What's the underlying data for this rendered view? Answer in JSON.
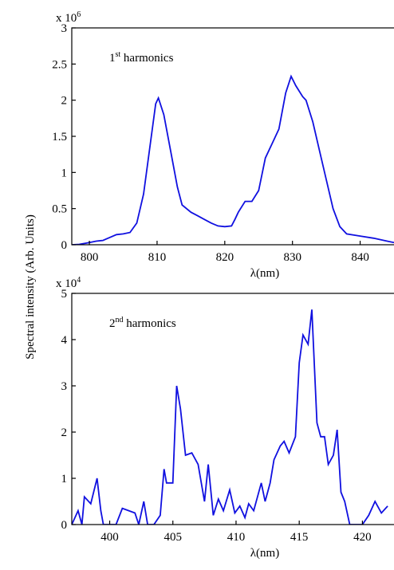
{
  "chart_data": [
    {
      "type": "line",
      "ylabel": "Spectral intensity (Arb. Units)",
      "xlabel": "λ(nm)",
      "y_multiplier": {
        "base": "x 10",
        "exponent": "6"
      },
      "annotation": {
        "order": "1",
        "suffix": "st",
        "text": " harmonics"
      },
      "xlim": [
        797.4,
        845
      ],
      "ylim": [
        0,
        3
      ],
      "xticks": [
        800,
        810,
        820,
        830,
        840
      ],
      "yticks": [
        0,
        0.5,
        1,
        1.5,
        2,
        2.5,
        3
      ],
      "x": [
        797.5,
        798.5,
        800,
        801,
        802,
        803,
        804,
        805,
        806,
        807,
        808,
        809,
        809.8,
        810.2,
        811,
        812,
        813,
        813.7,
        815,
        816,
        817,
        818,
        819,
        820,
        821,
        821.5,
        822,
        823,
        824,
        825,
        826,
        827,
        828,
        829,
        829.8,
        830.5,
        831.5,
        832,
        833,
        834,
        835,
        836,
        837,
        838,
        840,
        842,
        844,
        845
      ],
      "series": [
        {
          "color": "#1010e0",
          "values": [
            0,
            0.005,
            0.03,
            0.05,
            0.06,
            0.1,
            0.14,
            0.15,
            0.17,
            0.3,
            0.7,
            1.4,
            1.95,
            2.03,
            1.8,
            1.3,
            0.8,
            0.55,
            0.45,
            0.4,
            0.35,
            0.3,
            0.26,
            0.25,
            0.26,
            0.35,
            0.45,
            0.6,
            0.6,
            0.75,
            1.2,
            1.4,
            1.6,
            2.1,
            2.33,
            2.2,
            2.05,
            2.0,
            1.7,
            1.3,
            0.9,
            0.5,
            0.25,
            0.15,
            0.12,
            0.09,
            0.05,
            0.03
          ]
        }
      ]
    },
    {
      "type": "line",
      "xlabel": "λ(nm)",
      "y_multiplier": {
        "base": "x 10",
        "exponent": "4"
      },
      "annotation": {
        "order": "2",
        "suffix": "nd",
        "text": " harmonics"
      },
      "xlim": [
        397,
        422.5
      ],
      "ylim": [
        0,
        5
      ],
      "xticks": [
        400,
        405,
        410,
        415,
        420
      ],
      "yticks": [
        0,
        1,
        2,
        3,
        4,
        5
      ],
      "x": [
        397,
        397.5,
        397.8,
        398,
        398.5,
        399,
        399.3,
        399.5,
        400,
        400.5,
        401,
        402,
        402.3,
        402.7,
        403,
        403.5,
        404,
        404.3,
        404.5,
        405,
        405.3,
        405.6,
        406,
        406.5,
        407,
        407.5,
        407.8,
        408.2,
        408.6,
        409,
        409.5,
        409.9,
        410.3,
        410.7,
        411,
        411.4,
        412,
        412.3,
        412.7,
        413,
        413.5,
        413.8,
        414.2,
        414.7,
        415,
        415.3,
        415.7,
        416,
        416.4,
        416.7,
        417,
        417.3,
        417.7,
        418,
        418.3,
        418.6,
        419,
        420,
        420.5,
        421,
        421.5,
        422
      ],
      "series": [
        {
          "color": "#1010e0",
          "values": [
            0,
            0.3,
            0,
            0.6,
            0.45,
            1.0,
            0.3,
            0,
            0,
            0,
            0.35,
            0.25,
            0,
            0.5,
            0,
            0,
            0.2,
            1.2,
            0.9,
            0.9,
            3.0,
            2.5,
            1.5,
            1.55,
            1.3,
            0.5,
            1.3,
            0.2,
            0.55,
            0.3,
            0.75,
            0.25,
            0.4,
            0.15,
            0.45,
            0.3,
            0.9,
            0.5,
            0.9,
            1.4,
            1.7,
            1.8,
            1.55,
            1.9,
            3.5,
            4.1,
            3.9,
            4.65,
            2.2,
            1.9,
            1.9,
            1.3,
            1.5,
            2.05,
            0.7,
            0.5,
            0,
            0,
            0.2,
            0.5,
            0.25,
            0.4
          ]
        }
      ]
    }
  ]
}
